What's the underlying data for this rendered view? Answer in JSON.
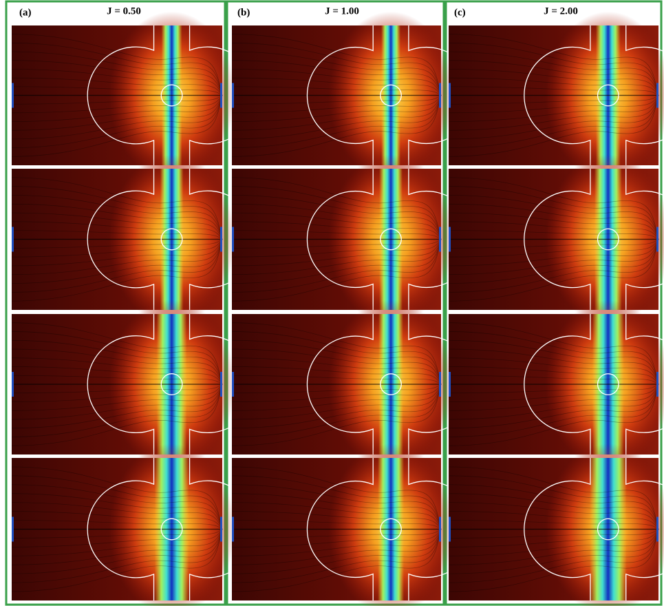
{
  "panels": [
    {
      "label": "(a)",
      "title": "J = 0.50"
    },
    {
      "label": "(b)",
      "title": "J = 1.00"
    },
    {
      "label": "(c)",
      "title": "J = 2.00"
    }
  ]
}
